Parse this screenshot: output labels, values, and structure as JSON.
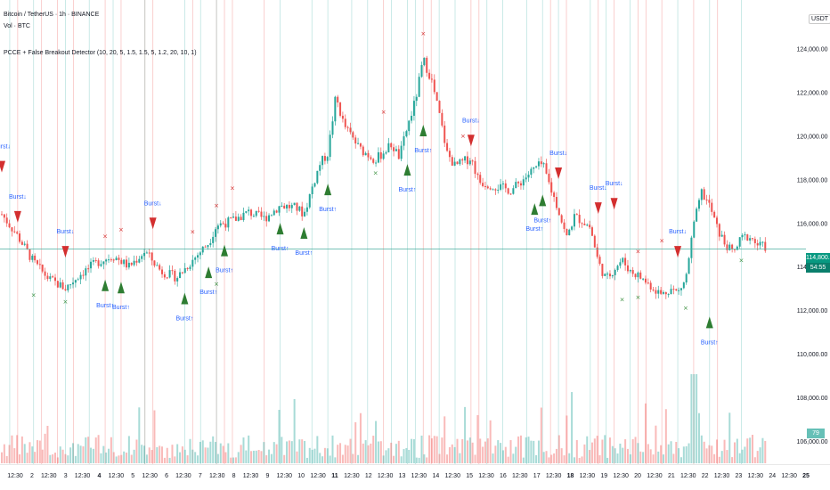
{
  "header": {
    "symbol_line": "Bitcoin / TetherUS · 1h · BINANCE",
    "vol_line": "Vol · BTC",
    "indicator_line": "PCCE + False Breakout Detector (10, 20, 5, 1.5, 1.5, 5, 1.2, 20, 10, 1)"
  },
  "price_axis": {
    "currency": "USDT",
    "labels": [
      "124,000.00",
      "122,000.00",
      "120,000.00",
      "118,000.00",
      "116,000.00",
      "114,000.00",
      "112,000.00",
      "110,000.00",
      "108,000.00",
      "106,000.00"
    ],
    "values": [
      124000,
      122000,
      120000,
      118000,
      116000,
      114000,
      112000,
      110000,
      108000,
      106000
    ],
    "current_price": "114,800.00",
    "current_time": "54:55",
    "volume_badge": "79"
  },
  "time_axis": {
    "labels": [
      "12:30",
      "2",
      "12:30",
      "3",
      "12:30",
      "4",
      "12:30",
      "5",
      "12:30",
      "6",
      "12:30",
      "7",
      "12:30",
      "8",
      "12:30",
      "9",
      "12:30",
      "10",
      "12:30",
      "11",
      "12:30",
      "12",
      "12:30",
      "13",
      "12:30",
      "14",
      "12:30",
      "15",
      "12:30",
      "16",
      "12:30",
      "17",
      "12:30",
      "18",
      "12:30",
      "19",
      "12:30",
      "20",
      "12:30",
      "21",
      "12:30",
      "22",
      "12:30",
      "23",
      "12:30",
      "24",
      "12:30",
      "25"
    ],
    "bold_labels": [
      "4",
      "11",
      "18",
      "25"
    ]
  },
  "colors": {
    "up": "#26a69a",
    "down": "#ef5350",
    "bull_triangle": "#2e7d32",
    "bear_triangle": "#d32f2f",
    "burst_label": "#2962ff",
    "x_bull": "#388e3c",
    "x_bear": "#d32f2f",
    "current_line": "#4caf9f"
  },
  "chart_data": {
    "type": "candlestick",
    "y_range": [
      106000,
      125000
    ],
    "x_range": [
      0,
      100
    ],
    "close_path": [
      [
        0,
        116400
      ],
      [
        2,
        115400
      ],
      [
        4,
        114200
      ],
      [
        6,
        113400
      ],
      [
        8,
        113000
      ],
      [
        10,
        113700
      ],
      [
        12,
        114200
      ],
      [
        14,
        114500
      ],
      [
        16,
        114000
      ],
      [
        18,
        114700
      ],
      [
        20,
        113800
      ],
      [
        22,
        113500
      ],
      [
        24,
        114300
      ],
      [
        26,
        115100
      ],
      [
        27,
        115900
      ],
      [
        29,
        116100
      ],
      [
        31,
        116500
      ],
      [
        33,
        116200
      ],
      [
        35,
        116800
      ],
      [
        37,
        116700
      ],
      [
        38,
        116400
      ],
      [
        39,
        117600
      ],
      [
        40,
        118700
      ],
      [
        41,
        119200
      ],
      [
        42,
        121800
      ],
      [
        43,
        120500
      ],
      [
        45,
        119400
      ],
      [
        47,
        118900
      ],
      [
        49,
        119600
      ],
      [
        50,
        119000
      ],
      [
        51,
        120400
      ],
      [
        52,
        121600
      ],
      [
        53,
        123500
      ],
      [
        54,
        122600
      ],
      [
        55,
        121000
      ],
      [
        56,
        119200
      ],
      [
        57,
        118600
      ],
      [
        58,
        118800
      ],
      [
        59,
        119000
      ],
      [
        60,
        117900
      ],
      [
        62,
        117700
      ],
      [
        64,
        117500
      ],
      [
        65,
        117800
      ],
      [
        67,
        118500
      ],
      [
        68,
        118700
      ],
      [
        69,
        117600
      ],
      [
        70,
        116600
      ],
      [
        71,
        115300
      ],
      [
        72,
        116300
      ],
      [
        73,
        116100
      ],
      [
        74,
        115800
      ],
      [
        75,
        114200
      ],
      [
        76,
        113400
      ],
      [
        77,
        113900
      ],
      [
        78,
        114300
      ],
      [
        79,
        113800
      ],
      [
        80,
        113600
      ],
      [
        81,
        113300
      ],
      [
        82,
        113000
      ],
      [
        83,
        112700
      ],
      [
        84,
        113000
      ],
      [
        85,
        112800
      ],
      [
        86,
        113400
      ],
      [
        87,
        115900
      ],
      [
        88,
        117400
      ],
      [
        89,
        116800
      ],
      [
        90,
        115700
      ],
      [
        91,
        115000
      ],
      [
        92,
        114600
      ],
      [
        93,
        115300
      ],
      [
        94,
        115400
      ],
      [
        95,
        115000
      ],
      [
        96,
        114900
      ]
    ],
    "bull_signals": [
      {
        "x": 13,
        "price": 113200,
        "label": "Burst↑"
      },
      {
        "x": 15,
        "price": 113100,
        "label": "Burst↑"
      },
      {
        "x": 23,
        "price": 112600,
        "label": "Burst↑"
      },
      {
        "x": 28,
        "price": 114800,
        "label": "Burst↑"
      },
      {
        "x": 26,
        "price": 113800,
        "label": "Burst↑"
      },
      {
        "x": 35,
        "price": 115800,
        "label": "Burst↑"
      },
      {
        "x": 38,
        "price": 115600,
        "label": "Burst↑"
      },
      {
        "x": 41,
        "price": 117600,
        "label": "Burst↑"
      },
      {
        "x": 51,
        "price": 118500,
        "label": "Burst↑"
      },
      {
        "x": 53,
        "price": 120300,
        "label": "Burst↑"
      },
      {
        "x": 67,
        "price": 116700,
        "label": "Burst↑"
      },
      {
        "x": 68,
        "price": 117100,
        "label": "Burst↑"
      },
      {
        "x": 89,
        "price": 111500,
        "label": "Burst↑"
      }
    ],
    "bear_signals": [
      {
        "x": 0,
        "price": 118600,
        "label": "Burst↓"
      },
      {
        "x": 2,
        "price": 116300,
        "label": "Burst↓"
      },
      {
        "x": 8,
        "price": 114700,
        "label": "Burst↓"
      },
      {
        "x": 19,
        "price": 116000,
        "label": "Burst↓"
      },
      {
        "x": 59,
        "price": 119800,
        "label": "Burst↓"
      },
      {
        "x": 70,
        "price": 118300,
        "label": "Burst↓"
      },
      {
        "x": 75,
        "price": 116700,
        "label": "Burst↓"
      },
      {
        "x": 77,
        "price": 116900,
        "label": "Burst↓"
      },
      {
        "x": 85,
        "price": 114700,
        "label": "Burst↓"
      }
    ],
    "x_bull_marks": [
      {
        "x": 4,
        "price": 112600
      },
      {
        "x": 8,
        "price": 112300
      },
      {
        "x": 47,
        "price": 118200
      },
      {
        "x": 78,
        "price": 112400
      },
      {
        "x": 80,
        "price": 112500
      },
      {
        "x": 86,
        "price": 112000
      },
      {
        "x": 93,
        "price": 114200
      },
      {
        "x": 27,
        "price": 113100
      }
    ],
    "x_bear_marks": [
      {
        "x": 13,
        "price": 115300
      },
      {
        "x": 15,
        "price": 115600
      },
      {
        "x": 24,
        "price": 115500
      },
      {
        "x": 27,
        "price": 116700
      },
      {
        "x": 29,
        "price": 117500
      },
      {
        "x": 48,
        "price": 121000
      },
      {
        "x": 53,
        "price": 124600
      },
      {
        "x": 58,
        "price": 119900
      },
      {
        "x": 80,
        "price": 114600
      },
      {
        "x": 83,
        "price": 115100
      }
    ],
    "red_vlines": [
      2,
      5,
      7,
      9,
      13,
      15,
      18,
      19,
      24,
      27,
      28,
      29,
      33,
      48,
      53,
      54,
      59,
      60,
      69,
      71,
      75,
      77,
      80,
      81,
      83,
      87,
      90
    ],
    "green_vlines": [
      1,
      4,
      8,
      11,
      14,
      18,
      23,
      25,
      27,
      35,
      39,
      41,
      44,
      46,
      49,
      51,
      52,
      55,
      57,
      61,
      63,
      66,
      68,
      70,
      74,
      76,
      79,
      85,
      89,
      93
    ],
    "current_price_value": 114800
  }
}
